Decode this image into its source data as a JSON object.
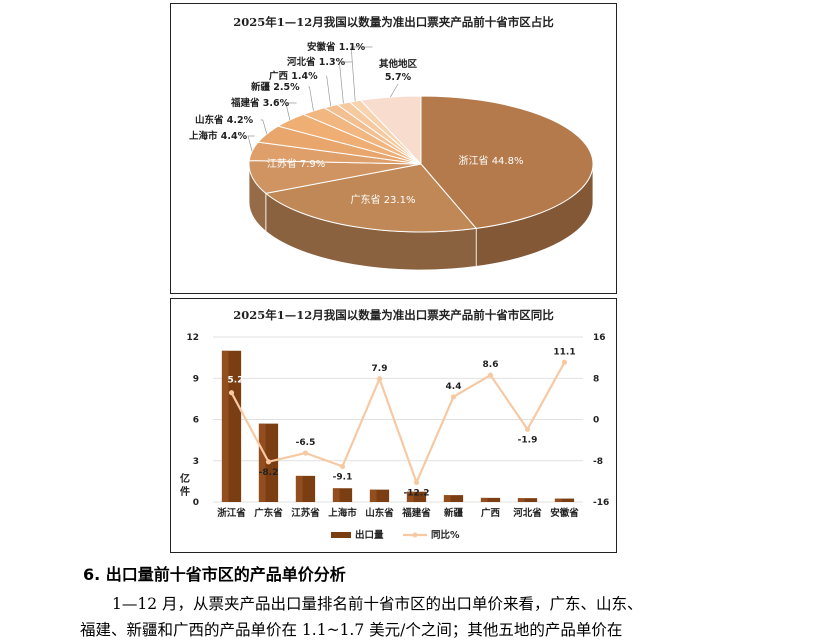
{
  "pie_chart": {
    "chart_data": {
      "type": "pie",
      "title": "2025年1—12月我国以数量为准出口票夹产品前十省市区占比",
      "slices": [
        {
          "label": "浙江省",
          "value": 44.8,
          "display": "浙江省 44.8%",
          "color": "#b47a4b"
        },
        {
          "label": "广东省",
          "value": 23.1,
          "display": "广东省 23.1%",
          "color": "#c18857"
        },
        {
          "label": "江苏省",
          "value": 7.9,
          "display": "江苏省 7.9%",
          "color": "#d09463"
        },
        {
          "label": "上海市",
          "value": 4.4,
          "display": "上海市 4.4%",
          "color": "#de9f6a"
        },
        {
          "label": "山东省",
          "value": 4.2,
          "display": "山东省 4.2%",
          "color": "#e8a66d"
        },
        {
          "label": "福建省",
          "value": 3.6,
          "display": "福建省 3.6%",
          "color": "#efae74"
        },
        {
          "label": "新疆",
          "value": 2.5,
          "display": "新疆 2.5%",
          "color": "#f2b681"
        },
        {
          "label": "广西",
          "value": 1.4,
          "display": "广西 1.4%",
          "color": "#f4bf90"
        },
        {
          "label": "河北省",
          "value": 1.3,
          "display": "河北省 1.3%",
          "color": "#f6c99f"
        },
        {
          "label": "安徽省",
          "value": 1.1,
          "display": "安徽省 1.1%",
          "color": "#f8d3b0"
        },
        {
          "label": "其他地区",
          "value": 5.7,
          "display": "其他地区 5.7%",
          "color": "#f8dccd"
        }
      ]
    }
  },
  "combo_chart": {
    "chart_data": {
      "type": "bar",
      "title": "2025年1—12月我国以数量为准出口票夹产品前十省市区同比",
      "categories": [
        "浙江省",
        "广东省",
        "江苏省",
        "上海市",
        "山东省",
        "福建省",
        "新疆",
        "广西",
        "河北省",
        "安徽省"
      ],
      "series": [
        {
          "name": "出口量",
          "type": "bar",
          "axis": "left",
          "values": [
            11,
            5.7,
            1.9,
            1.0,
            0.9,
            0.75,
            0.5,
            0.3,
            0.28,
            0.25
          ],
          "color": "#7b3d12"
        },
        {
          "name": "同比%",
          "type": "line",
          "axis": "right",
          "values": [
            5.2,
            -8.2,
            -6.5,
            -9.1,
            7.9,
            -12.2,
            4.4,
            8.6,
            -1.9,
            11.1
          ],
          "labels": [
            "5.2",
            "-8.2",
            "-6.5",
            "-9.1",
            "7.9",
            "-12.2",
            "4.4",
            "8.6",
            "-1.9",
            "11.1"
          ],
          "color": "#f7c9a3"
        }
      ],
      "ylabel": "亿件",
      "ylim": [
        0,
        12
      ],
      "y_ticks": [
        "0",
        "3",
        "6",
        "9",
        "12"
      ],
      "y2lim": [
        -16,
        16
      ],
      "y2_ticks": [
        "-16",
        "-8",
        "0",
        "8",
        "16"
      ],
      "grid": true,
      "legend": "bottom"
    }
  },
  "section": {
    "heading": "6. 出口量前十省市区的产品单价分析",
    "line1": "1—12 月，从票夹产品出口量排名前十省市区的出口单价来看，广东、山东、",
    "line2": "福建、新疆和广西的产品单价在 1.1~1.7 美元/个之间；其他五地的产品单价在"
  }
}
